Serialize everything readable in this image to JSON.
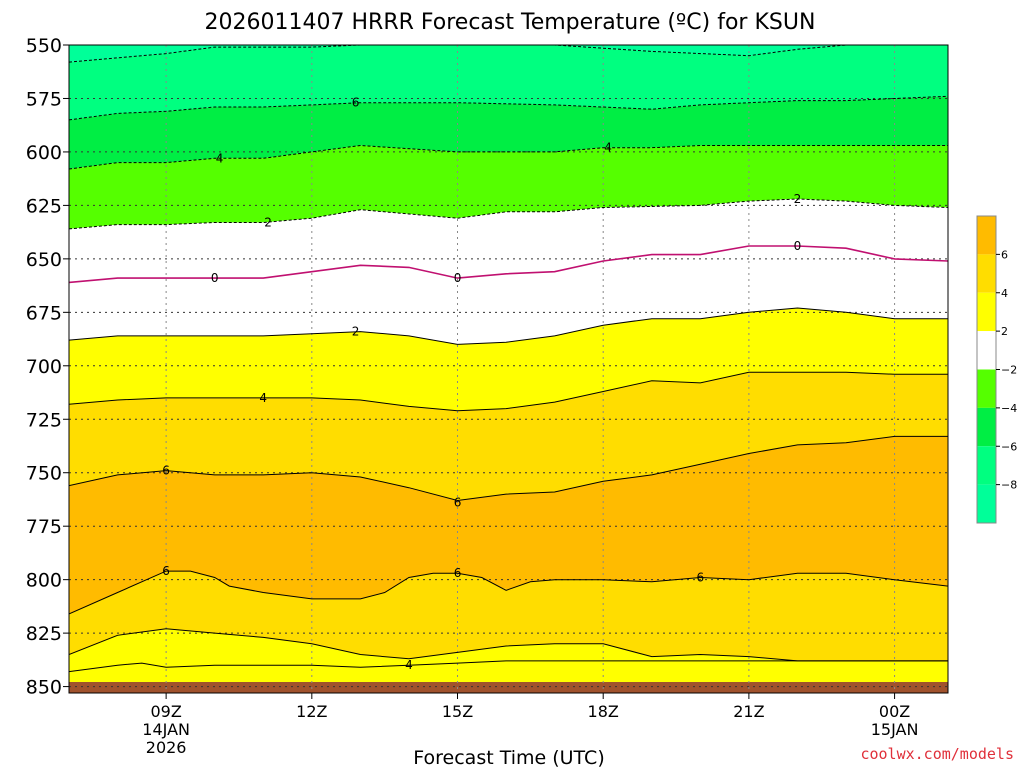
{
  "chart_data": {
    "type": "contour",
    "title": "2026011407 HRRR Forecast Temperature (ºC) for KSUN",
    "xlabel": "Forecast Time (UTC)",
    "credit": "coolwx.com/models",
    "x_range_hours": [
      7,
      25.1
    ],
    "y_range": [
      550,
      853
    ],
    "x_ticks": [
      {
        "hour": 9,
        "lines": [
          "09Z",
          "14JAN",
          "2026"
        ]
      },
      {
        "hour": 12,
        "lines": [
          "12Z"
        ]
      },
      {
        "hour": 15,
        "lines": [
          "15Z"
        ]
      },
      {
        "hour": 18,
        "lines": [
          "18Z"
        ]
      },
      {
        "hour": 21,
        "lines": [
          "21Z"
        ]
      },
      {
        "hour": 24,
        "lines": [
          "00Z",
          "15JAN"
        ]
      }
    ],
    "y_ticks": [
      550,
      575,
      600,
      625,
      650,
      675,
      700,
      725,
      750,
      775,
      800,
      825,
      850
    ],
    "grid": true,
    "colorbar": {
      "placement": "right",
      "labels": [
        "6",
        "4",
        "2",
        "−2",
        "−4",
        "−6",
        "−8"
      ],
      "colors": [
        "#ffbb00",
        "#ffdd00",
        "#ffff00",
        "#ffffff",
        "#55ff00",
        "#00ee44",
        "#00ff80",
        "#00ff99"
      ]
    },
    "contour_lines": [
      {
        "level": -6,
        "style": "dashed",
        "color": "#000000",
        "points": [
          [
            7,
            558
          ],
          [
            9,
            554
          ],
          [
            10,
            551
          ],
          [
            11,
            551
          ],
          [
            12,
            551
          ],
          [
            13,
            550
          ],
          [
            15,
            550
          ],
          [
            17,
            550
          ],
          [
            19,
            553
          ],
          [
            21,
            555
          ],
          [
            22,
            552
          ],
          [
            23,
            550
          ],
          [
            25.1,
            550
          ]
        ]
      },
      {
        "level": -6,
        "style": "dashed",
        "color": "#000000",
        "points": [
          [
            7,
            585
          ],
          [
            8,
            582
          ],
          [
            9,
            581
          ],
          [
            10,
            579
          ],
          [
            11,
            579
          ],
          [
            12,
            578
          ],
          [
            13,
            577
          ],
          [
            15,
            577
          ],
          [
            17,
            578
          ],
          [
            19,
            580
          ],
          [
            20,
            578
          ],
          [
            21,
            577
          ],
          [
            22,
            576
          ],
          [
            23,
            576
          ],
          [
            24,
            575
          ],
          [
            25.1,
            574
          ]
        ]
      },
      {
        "level": -4,
        "style": "dashed",
        "color": "#000000",
        "points": [
          [
            7,
            608
          ],
          [
            8,
            605
          ],
          [
            9,
            605
          ],
          [
            10,
            603
          ],
          [
            11,
            603
          ],
          [
            12,
            600
          ],
          [
            13,
            597
          ],
          [
            15,
            600
          ],
          [
            17,
            600
          ],
          [
            18,
            598
          ],
          [
            19,
            598
          ],
          [
            20,
            597
          ],
          [
            21,
            597
          ],
          [
            22,
            597
          ],
          [
            25.1,
            597
          ]
        ]
      },
      {
        "level": -2,
        "style": "dashed",
        "color": "#000000",
        "points": [
          [
            7,
            636
          ],
          [
            8,
            634
          ],
          [
            9,
            634
          ],
          [
            10,
            633
          ],
          [
            11,
            633
          ],
          [
            12,
            631
          ],
          [
            13,
            627
          ],
          [
            15,
            631
          ],
          [
            16,
            628
          ],
          [
            17,
            628
          ],
          [
            18,
            626
          ],
          [
            20,
            625
          ],
          [
            21,
            623
          ],
          [
            22,
            622
          ],
          [
            23,
            623
          ],
          [
            24,
            625
          ],
          [
            25.1,
            626
          ]
        ]
      },
      {
        "level": 0,
        "style": "solid",
        "color": "#c01070",
        "points": [
          [
            7,
            661
          ],
          [
            8,
            659
          ],
          [
            9,
            659
          ],
          [
            10,
            659
          ],
          [
            11,
            659
          ],
          [
            12,
            656
          ],
          [
            13,
            653
          ],
          [
            14,
            654
          ],
          [
            15,
            659
          ],
          [
            16,
            657
          ],
          [
            17,
            656
          ],
          [
            18,
            651
          ],
          [
            19,
            648
          ],
          [
            20,
            648
          ],
          [
            21,
            644
          ],
          [
            22,
            644
          ],
          [
            23,
            645
          ],
          [
            24,
            650
          ],
          [
            25.1,
            651
          ]
        ]
      },
      {
        "level": 2,
        "style": "solid",
        "color": "#000000",
        "points": [
          [
            7,
            688
          ],
          [
            8,
            686
          ],
          [
            9,
            686
          ],
          [
            10,
            686
          ],
          [
            11,
            686
          ],
          [
            12,
            685
          ],
          [
            13,
            684
          ],
          [
            14,
            686
          ],
          [
            15,
            690
          ],
          [
            16,
            689
          ],
          [
            17,
            686
          ],
          [
            18,
            681
          ],
          [
            19,
            678
          ],
          [
            20,
            678
          ],
          [
            21,
            675
          ],
          [
            22,
            673
          ],
          [
            23,
            675
          ],
          [
            24,
            678
          ],
          [
            25.1,
            678
          ]
        ]
      },
      {
        "level": 4,
        "style": "solid",
        "color": "#000000",
        "points": [
          [
            7,
            718
          ],
          [
            8,
            716
          ],
          [
            9,
            715
          ],
          [
            10,
            715
          ],
          [
            11,
            715
          ],
          [
            12,
            715
          ],
          [
            13,
            716
          ],
          [
            14,
            719
          ],
          [
            15,
            721
          ],
          [
            16,
            720
          ],
          [
            17,
            717
          ],
          [
            18,
            712
          ],
          [
            19,
            707
          ],
          [
            20,
            708
          ],
          [
            21,
            703
          ],
          [
            22,
            703
          ],
          [
            23,
            703
          ],
          [
            24,
            704
          ],
          [
            25.1,
            704
          ]
        ]
      },
      {
        "level": 6,
        "style": "solid",
        "color": "#000000",
        "points": [
          [
            7,
            756
          ],
          [
            8,
            751
          ],
          [
            9,
            749
          ],
          [
            10,
            751
          ],
          [
            11,
            751
          ],
          [
            12,
            750
          ],
          [
            13,
            752
          ],
          [
            14,
            757
          ],
          [
            15,
            763
          ],
          [
            16,
            760
          ],
          [
            17,
            759
          ],
          [
            18,
            754
          ],
          [
            19,
            751
          ],
          [
            20,
            746
          ],
          [
            21,
            741
          ],
          [
            22,
            737
          ],
          [
            23,
            736
          ],
          [
            24,
            733
          ],
          [
            25.1,
            733
          ]
        ]
      },
      {
        "level": 6,
        "style": "solid",
        "color": "#000000",
        "points": [
          [
            7,
            816
          ],
          [
            8,
            806
          ],
          [
            9,
            796
          ],
          [
            9.5,
            796
          ],
          [
            10,
            799
          ],
          [
            10.3,
            803
          ],
          [
            11,
            806
          ],
          [
            12,
            809
          ],
          [
            13,
            809
          ],
          [
            13.5,
            806
          ],
          [
            14,
            799
          ],
          [
            14.5,
            797
          ],
          [
            15,
            797
          ],
          [
            15.5,
            799
          ],
          [
            16,
            805
          ],
          [
            16.5,
            801
          ],
          [
            17,
            800
          ],
          [
            18,
            800
          ],
          [
            19,
            801
          ],
          [
            20,
            799
          ],
          [
            21,
            800
          ],
          [
            22,
            797
          ],
          [
            23,
            797
          ],
          [
            24,
            800
          ],
          [
            25.1,
            803
          ]
        ]
      },
      {
        "level": 4,
        "style": "solid",
        "color": "#000000",
        "points": [
          [
            7,
            835
          ],
          [
            8,
            826
          ],
          [
            9,
            823
          ],
          [
            10,
            825
          ],
          [
            11,
            827
          ],
          [
            12,
            830
          ],
          [
            13,
            835
          ],
          [
            14,
            837
          ],
          [
            15,
            834
          ],
          [
            16,
            831
          ],
          [
            17,
            830
          ],
          [
            18,
            830
          ],
          [
            19,
            836
          ],
          [
            20,
            835
          ],
          [
            21,
            836
          ],
          [
            22,
            838
          ],
          [
            25.1,
            838
          ]
        ]
      },
      {
        "level": 4,
        "style": "solid",
        "color": "#000000",
        "points": [
          [
            7,
            843
          ],
          [
            8,
            840
          ],
          [
            8.5,
            839
          ],
          [
            9,
            841
          ],
          [
            10,
            840
          ],
          [
            11,
            840
          ],
          [
            12,
            840
          ],
          [
            13,
            841
          ],
          [
            14,
            840
          ],
          [
            15,
            839
          ],
          [
            16,
            838
          ],
          [
            17,
            838
          ],
          [
            18,
            838
          ],
          [
            20,
            838
          ],
          [
            21,
            838
          ],
          [
            22,
            838
          ],
          [
            25.1,
            838
          ]
        ]
      }
    ],
    "contour_labels": [
      {
        "text": "6",
        "x": 12.9,
        "y": 577
      },
      {
        "text": "4",
        "x": 10.1,
        "y": 603
      },
      {
        "text": "4",
        "x": 18.1,
        "y": 598
      },
      {
        "text": "2",
        "x": 11.1,
        "y": 633
      },
      {
        "text": "2",
        "x": 22.0,
        "y": 622
      },
      {
        "text": "0",
        "x": 10.0,
        "y": 659
      },
      {
        "text": "0",
        "x": 15.0,
        "y": 659
      },
      {
        "text": "0",
        "x": 22.0,
        "y": 644
      },
      {
        "text": "2",
        "x": 12.9,
        "y": 684
      },
      {
        "text": "4",
        "x": 11.0,
        "y": 715
      },
      {
        "text": "6",
        "x": 9.0,
        "y": 749
      },
      {
        "text": "6",
        "x": 15.0,
        "y": 764
      },
      {
        "text": "6",
        "x": 9.0,
        "y": 796
      },
      {
        "text": "6",
        "x": 15.0,
        "y": 797
      },
      {
        "text": "6",
        "x": 20.0,
        "y": 799
      },
      {
        "text": "4",
        "x": 14.0,
        "y": 840
      }
    ]
  }
}
